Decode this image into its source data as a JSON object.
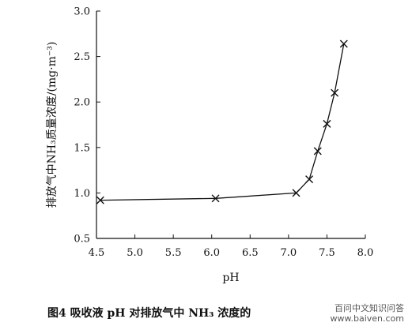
{
  "chart_data": {
    "type": "line",
    "xlabel": "pH",
    "ylabel": "排放气中NH₃质量浓度/(mg·m⁻³)",
    "xlim": [
      4.5,
      8.0
    ],
    "ylim": [
      0.5,
      3.0
    ],
    "xticks": [
      "4.5",
      "5.0",
      "5.5",
      "6.0",
      "6.5",
      "7.0",
      "7.5",
      "8.0"
    ],
    "yticks": [
      "0.5",
      "1.0",
      "1.5",
      "2.0",
      "2.5",
      "3.0"
    ],
    "marker": "x",
    "series": [
      {
        "x": [
          4.55,
          6.05,
          7.1,
          7.27,
          7.38,
          7.5,
          7.6,
          7.72
        ],
        "y": [
          0.92,
          0.94,
          1.0,
          1.15,
          1.46,
          1.76,
          2.1,
          2.64
        ]
      }
    ],
    "grid": false
  },
  "caption": "图4   吸收液 pH 对排放气中 NH₃ 浓度的",
  "watermark": {
    "line1": "百问中文知识问答",
    "line2": "www.baiven.com"
  }
}
